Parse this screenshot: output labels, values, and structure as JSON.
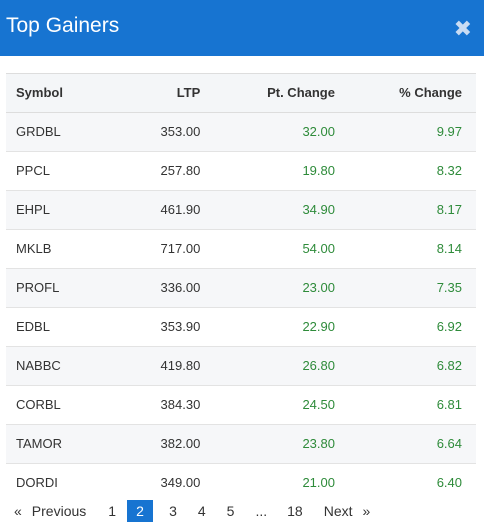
{
  "header": {
    "title": "Top Gainers",
    "close_icon": "close-icon"
  },
  "table": {
    "columns": [
      "Symbol",
      "LTP",
      "Pt. Change",
      "% Change"
    ],
    "rows": [
      {
        "symbol": "GRDBL",
        "ltp": "353.00",
        "pt": "32.00",
        "pct": "9.97"
      },
      {
        "symbol": "PPCL",
        "ltp": "257.80",
        "pt": "19.80",
        "pct": "8.32"
      },
      {
        "symbol": "EHPL",
        "ltp": "461.90",
        "pt": "34.90",
        "pct": "8.17"
      },
      {
        "symbol": "MKLB",
        "ltp": "717.00",
        "pt": "54.00",
        "pct": "8.14"
      },
      {
        "symbol": "PROFL",
        "ltp": "336.00",
        "pt": "23.00",
        "pct": "7.35"
      },
      {
        "symbol": "EDBL",
        "ltp": "353.90",
        "pt": "22.90",
        "pct": "6.92"
      },
      {
        "symbol": "NABBC",
        "ltp": "419.80",
        "pt": "26.80",
        "pct": "6.82"
      },
      {
        "symbol": "CORBL",
        "ltp": "384.30",
        "pt": "24.50",
        "pct": "6.81"
      },
      {
        "symbol": "TAMOR",
        "ltp": "382.00",
        "pt": "23.80",
        "pct": "6.64"
      },
      {
        "symbol": "DORDI",
        "ltp": "349.00",
        "pt": "21.00",
        "pct": "6.40"
      }
    ]
  },
  "pagination": {
    "prev_arrow": "«",
    "prev_label": "Previous",
    "pages": [
      "1",
      "2",
      "3",
      "4",
      "5"
    ],
    "active": "2",
    "ellipsis": "...",
    "last": "18",
    "next_label": "Next",
    "next_arrow": "»"
  },
  "colors": {
    "header": "#1774d1",
    "positive": "#2e8b3a"
  }
}
